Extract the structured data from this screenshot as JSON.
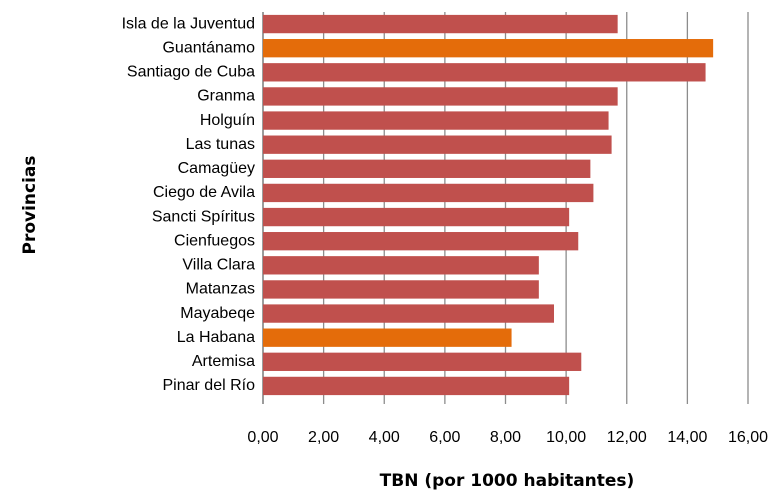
{
  "chart_data": {
    "type": "bar",
    "orientation": "horizontal",
    "x_label": "TBN (por 1000 habitantes)",
    "y_label": "Provincias",
    "categories": [
      "Isla de la Juventud",
      "Guantánamo",
      "Santiago de Cuba",
      "Granma",
      "Holguín",
      "Las tunas",
      "Camagüey",
      "Ciego de Avila",
      "Sancti Spíritus",
      "Cienfuegos",
      "Villa Clara",
      "Matanzas",
      "Mayabeqe",
      "La Habana",
      "Artemisa",
      "Pinar del Río"
    ],
    "values": [
      11.7,
      14.85,
      14.6,
      11.7,
      11.4,
      11.5,
      10.8,
      10.9,
      10.1,
      10.4,
      9.1,
      9.1,
      9.6,
      8.2,
      10.5,
      10.1
    ],
    "colors": [
      "#c0504d",
      "#e46c0a",
      "#c0504d",
      "#c0504d",
      "#c0504d",
      "#c0504d",
      "#c0504d",
      "#c0504d",
      "#c0504d",
      "#c0504d",
      "#c0504d",
      "#c0504d",
      "#c0504d",
      "#e46c0a",
      "#c0504d",
      "#c0504d"
    ],
    "xlim": [
      0,
      16
    ],
    "xticks": [
      {
        "value": 0,
        "label": "0,00"
      },
      {
        "value": 2,
        "label": "2,00"
      },
      {
        "value": 4,
        "label": "4,00"
      },
      {
        "value": 6,
        "label": "6,00"
      },
      {
        "value": 8,
        "label": "8,00"
      },
      {
        "value": 10,
        "label": "10,00"
      },
      {
        "value": 12,
        "label": "12,00"
      },
      {
        "value": 14,
        "label": "14,00"
      },
      {
        "value": 16,
        "label": "16,00"
      }
    ],
    "grid": true
  }
}
